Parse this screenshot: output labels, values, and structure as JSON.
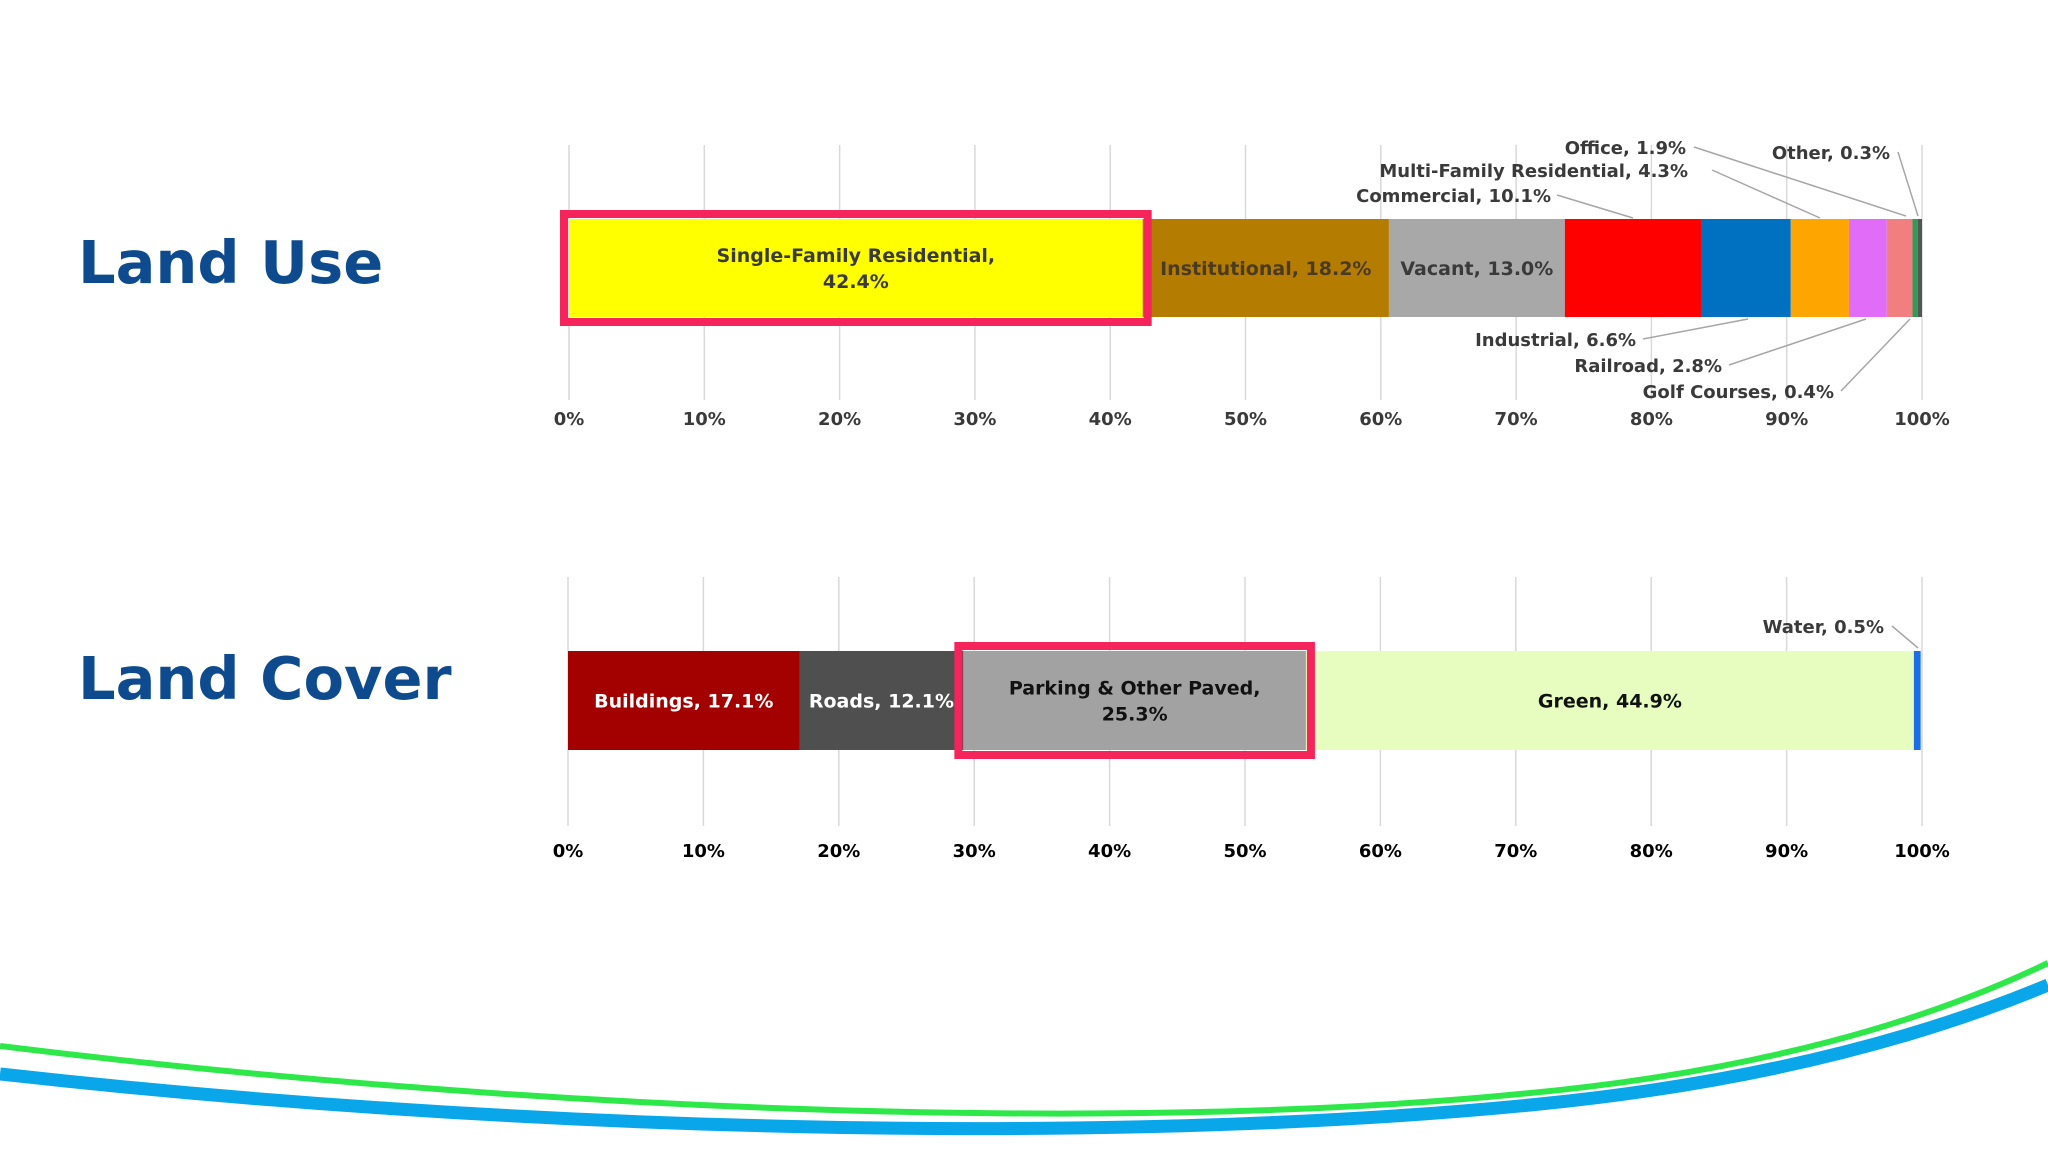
{
  "titles": {
    "land_use": "Land Use",
    "land_cover": "Land Cover"
  },
  "chart_data": [
    {
      "type": "bar",
      "orientation": "horizontal-stacked-100",
      "title": "Land Use",
      "xlim": [
        0,
        100
      ],
      "x_ticks": [
        "0%",
        "10%",
        "20%",
        "30%",
        "40%",
        "50%",
        "60%",
        "70%",
        "80%",
        "90%",
        "100%"
      ],
      "grid": true,
      "highlight": "Single-Family Residential",
      "highlight_color": "#f5245a",
      "label_color": "#3a3a3a",
      "series": [
        {
          "name": "Single-Family Residential",
          "value": 42.4,
          "color": "#ffff00",
          "label": [
            "Single-Family Residential,",
            "42.4%"
          ],
          "label_mode": "inside",
          "text_color": "#3a3a3a"
        },
        {
          "name": "Institutional",
          "value": 18.2,
          "color": "#b47c00",
          "label": [
            "Institutional, 18.2%"
          ],
          "label_mode": "inside",
          "text_color": "#4a3a20"
        },
        {
          "name": "Vacant",
          "value": 13.0,
          "color": "#a8a8a8",
          "label": [
            "Vacant, 13.0%"
          ],
          "label_mode": "inside",
          "text_color": "#3a3a3a"
        },
        {
          "name": "Commercial",
          "value": 10.1,
          "color": "#ff0000",
          "label": [
            "Commercial, 10.1%"
          ],
          "label_mode": "above"
        },
        {
          "name": "Industrial",
          "value": 6.6,
          "color": "#0070c0",
          "label": [
            "Industrial, 6.6%"
          ],
          "label_mode": "below"
        },
        {
          "name": "Multi-Family Residential",
          "value": 4.3,
          "color": "#ffa500",
          "label": [
            "Multi-Family Residential, 4.3%"
          ],
          "label_mode": "above"
        },
        {
          "name": "Railroad",
          "value": 2.8,
          "color": "#e06cf7",
          "label": [
            "Railroad, 2.8%"
          ],
          "label_mode": "below"
        },
        {
          "name": "Office",
          "value": 1.9,
          "color": "#f27f7f",
          "label": [
            "Office, 1.9%"
          ],
          "label_mode": "above"
        },
        {
          "name": "Golf Courses",
          "value": 0.4,
          "color": "#2e9b57",
          "label": [
            "Golf Courses, 0.4%"
          ],
          "label_mode": "below"
        },
        {
          "name": "Other",
          "value": 0.3,
          "color": "#555555",
          "label": [
            "Other, 0.3%"
          ],
          "label_mode": "above"
        }
      ]
    },
    {
      "type": "bar",
      "orientation": "horizontal-stacked-100",
      "title": "Land Cover",
      "xlim": [
        0,
        100
      ],
      "x_ticks": [
        "0%",
        "10%",
        "20%",
        "30%",
        "40%",
        "50%",
        "60%",
        "70%",
        "80%",
        "90%",
        "100%"
      ],
      "grid": true,
      "highlight": "Parking & Other Paved",
      "highlight_color": "#f5245a",
      "label_color": "#000000",
      "series": [
        {
          "name": "Buildings",
          "value": 17.1,
          "color": "#a30000",
          "label": [
            "Buildings, 17.1%"
          ],
          "label_mode": "inside",
          "text_color": "#ffffff"
        },
        {
          "name": "Roads",
          "value": 12.1,
          "color": "#4f4f4f",
          "label": [
            "Roads, 12.1%"
          ],
          "label_mode": "inside",
          "text_color": "#ffffff"
        },
        {
          "name": "Parking & Other Paved",
          "value": 25.3,
          "color": "#a2a2a2",
          "label": [
            "Parking & Other Paved,",
            "25.3%"
          ],
          "label_mode": "inside",
          "text_color": "#111111"
        },
        {
          "name": "Green",
          "value": 44.9,
          "color": "#e6fdbf",
          "label": [
            "Green, 44.9%"
          ],
          "label_mode": "inside",
          "text_color": "#111111"
        },
        {
          "name": "Water",
          "value": 0.5,
          "color": "#1a6ee8",
          "label": [
            "Water, 0.5%"
          ],
          "label_mode": "above"
        }
      ]
    }
  ],
  "decoration": {
    "wave_colors": [
      "#2ee84a",
      "#0aa6ea"
    ]
  }
}
